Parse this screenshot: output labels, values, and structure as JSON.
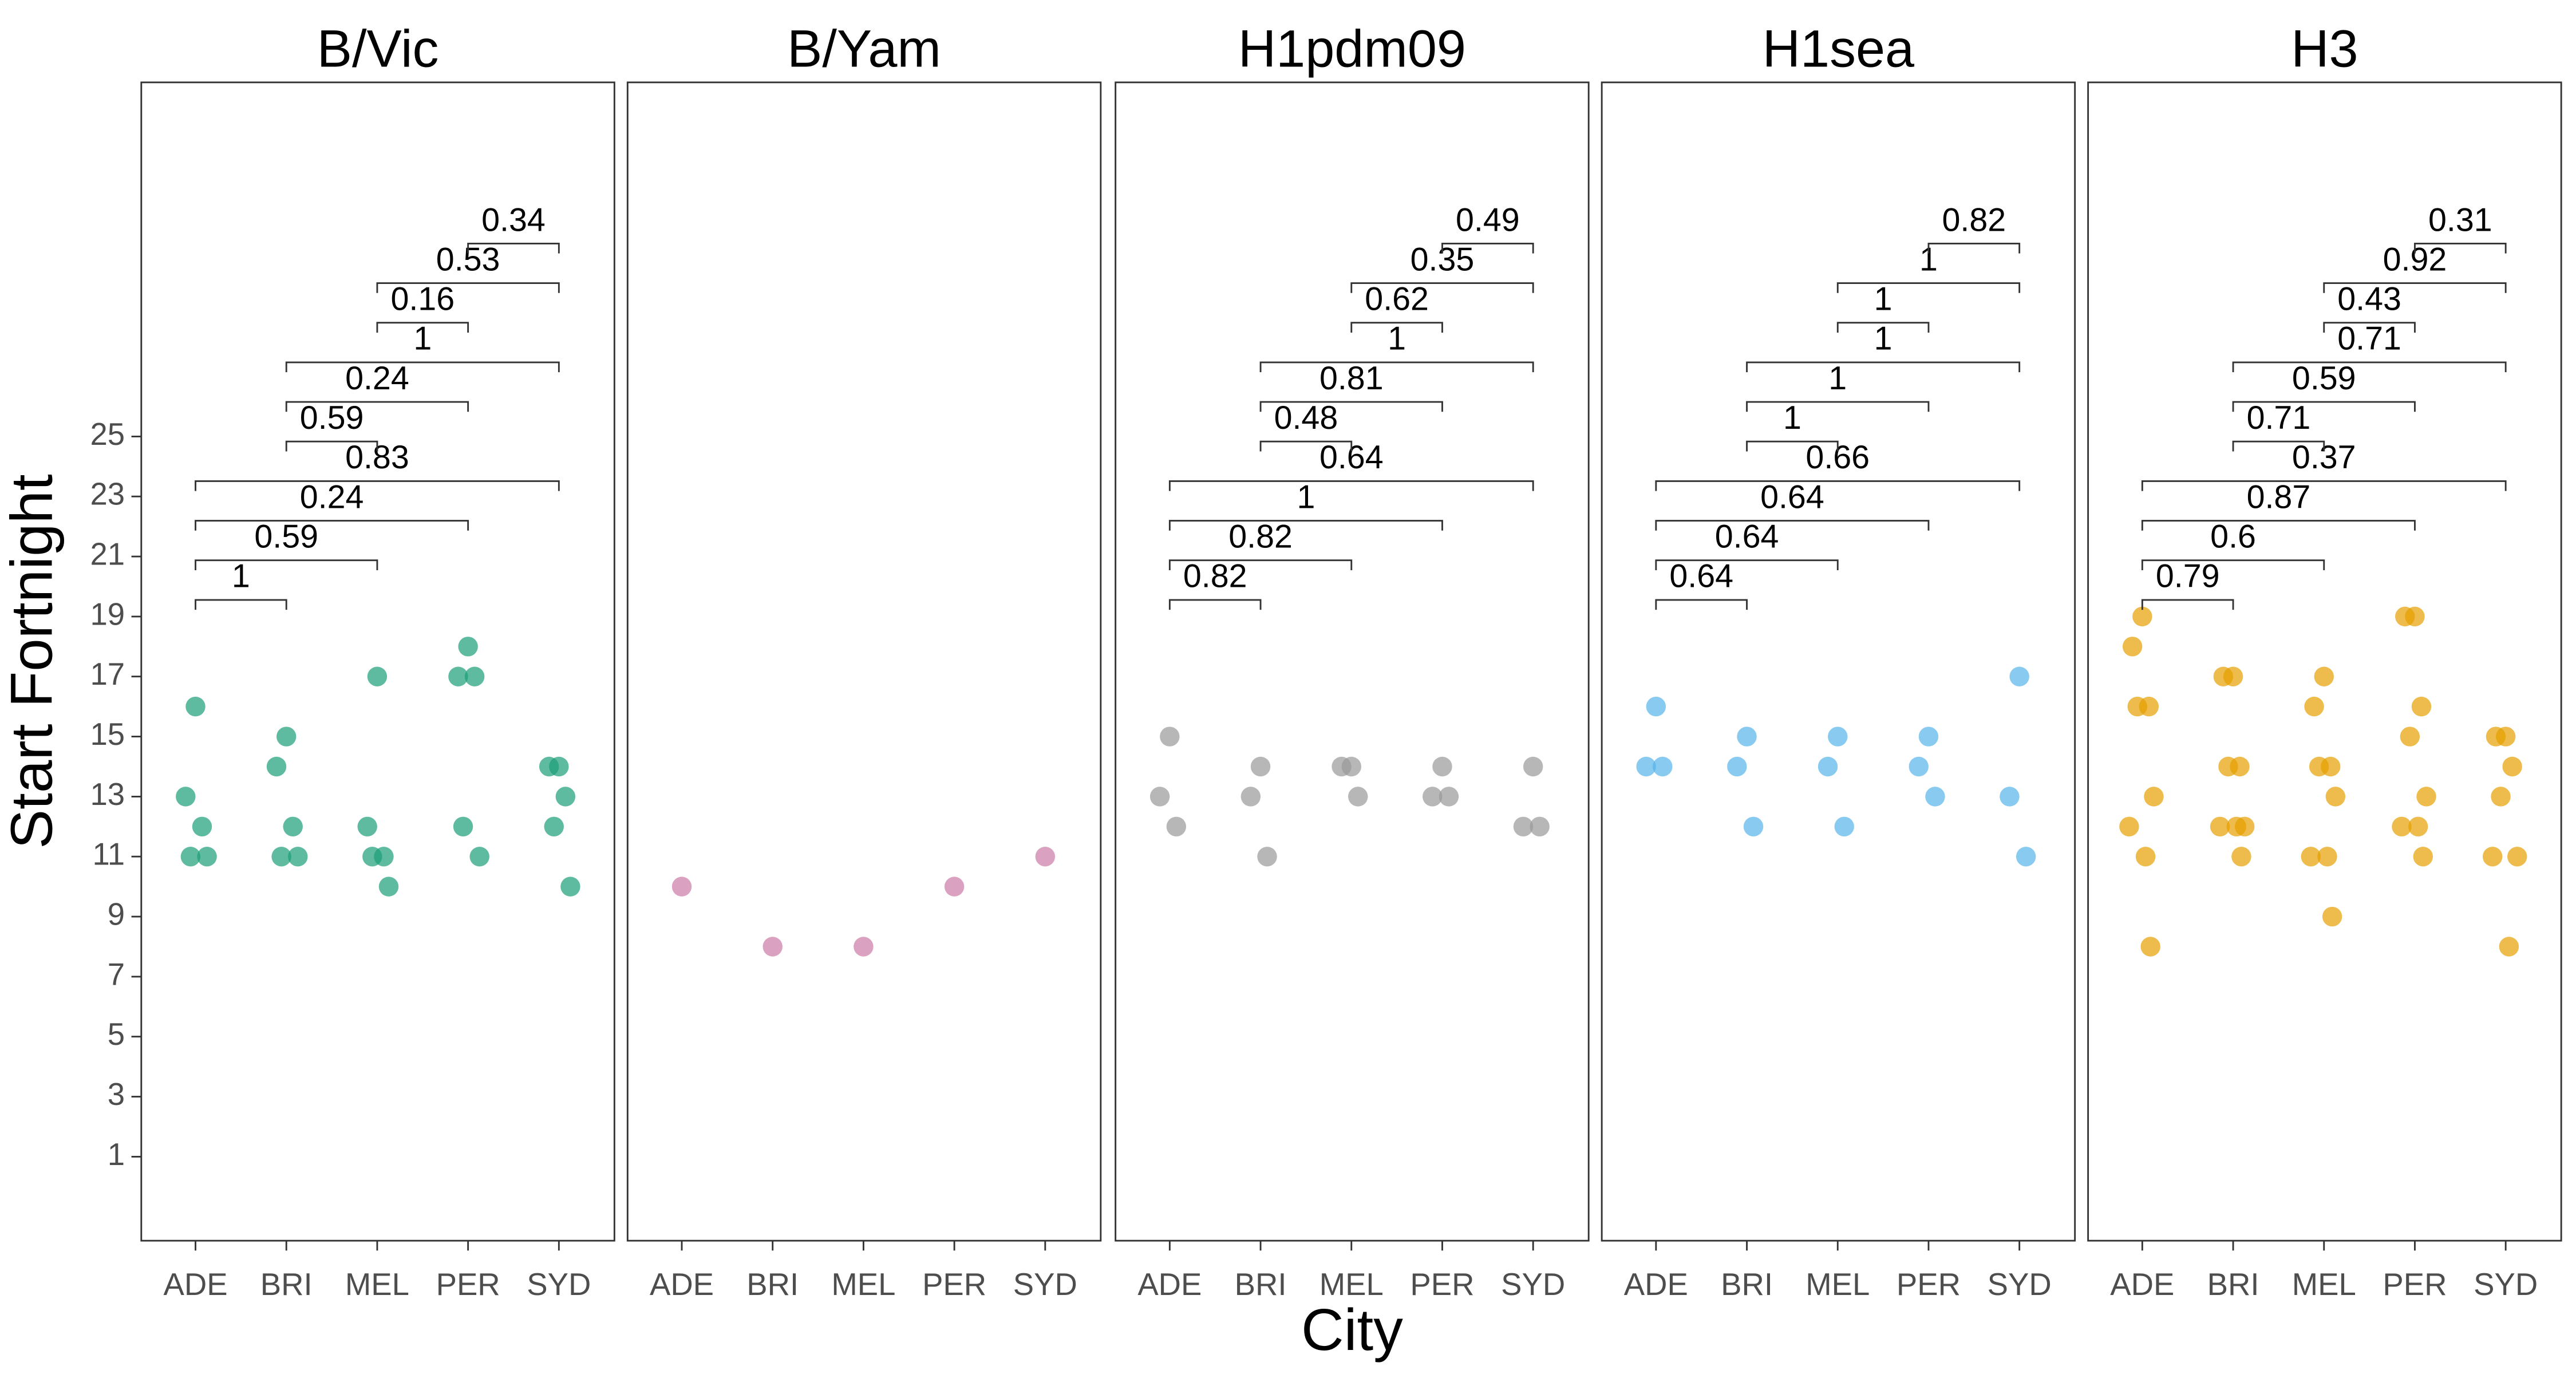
{
  "chart_data": [
    {
      "type": "scatter",
      "title": "B/Vic",
      "y_label": "Start Fortnight",
      "ylim": [
        -1.8,
        36.8
      ],
      "yticks": [
        1,
        3,
        5,
        7,
        9,
        11,
        13,
        15,
        17,
        19,
        21,
        23,
        25
      ],
      "categories": [
        "ADE",
        "BRI",
        "MEL",
        "PER",
        "SYD"
      ],
      "color": "#1b9e77",
      "x": [
        "ADE",
        "ADE",
        "ADE",
        "ADE",
        "ADE",
        "BRI",
        "BRI",
        "BRI",
        "BRI",
        "BRI",
        "MEL",
        "MEL",
        "MEL",
        "MEL",
        "MEL",
        "PER",
        "PER",
        "PER",
        "PER",
        "PER",
        "SYD",
        "SYD",
        "SYD",
        "SYD",
        "SYD"
      ],
      "values": [
        16,
        13,
        12,
        11,
        11,
        15,
        14,
        12,
        11,
        11,
        17,
        12,
        11,
        11,
        10,
        18,
        17,
        17,
        12,
        11,
        14,
        14,
        13,
        12,
        10
      ],
      "comparisons": [
        {
          "groups": [
            "ADE",
            "BRI"
          ],
          "p": 1
        },
        {
          "groups": [
            "ADE",
            "MEL"
          ],
          "p": 0.59
        },
        {
          "groups": [
            "ADE",
            "PER"
          ],
          "p": 0.24
        },
        {
          "groups": [
            "ADE",
            "SYD"
          ],
          "p": 0.83
        },
        {
          "groups": [
            "BRI",
            "MEL"
          ],
          "p": 0.59
        },
        {
          "groups": [
            "BRI",
            "PER"
          ],
          "p": 0.24
        },
        {
          "groups": [
            "BRI",
            "SYD"
          ],
          "p": 1
        },
        {
          "groups": [
            "MEL",
            "PER"
          ],
          "p": 0.16
        },
        {
          "groups": [
            "MEL",
            "SYD"
          ],
          "p": 0.53
        },
        {
          "groups": [
            "PER",
            "SYD"
          ],
          "p": 0.34
        }
      ]
    },
    {
      "type": "scatter",
      "title": "B/Yam",
      "categories": [
        "ADE",
        "BRI",
        "MEL",
        "PER",
        "SYD"
      ],
      "color": "#cc79a7",
      "x": [
        "ADE",
        "BRI",
        "MEL",
        "PER",
        "SYD"
      ],
      "values": [
        10,
        8,
        8,
        10,
        11
      ],
      "comparisons": []
    },
    {
      "type": "scatter",
      "title": "H1pdm09",
      "x_label": "City",
      "categories": [
        "ADE",
        "BRI",
        "MEL",
        "PER",
        "SYD"
      ],
      "color": "#999999",
      "x": [
        "ADE",
        "ADE",
        "ADE",
        "BRI",
        "BRI",
        "BRI",
        "MEL",
        "MEL",
        "MEL",
        "PER",
        "PER",
        "PER",
        "SYD",
        "SYD",
        "SYD"
      ],
      "values": [
        15,
        13,
        12,
        14,
        13,
        11,
        14,
        14,
        13,
        14,
        13,
        13,
        14,
        12,
        12
      ],
      "comparisons": [
        {
          "groups": [
            "ADE",
            "BRI"
          ],
          "p": 0.82
        },
        {
          "groups": [
            "ADE",
            "MEL"
          ],
          "p": 0.82
        },
        {
          "groups": [
            "ADE",
            "PER"
          ],
          "p": 1
        },
        {
          "groups": [
            "ADE",
            "SYD"
          ],
          "p": 0.64
        },
        {
          "groups": [
            "BRI",
            "MEL"
          ],
          "p": 0.48
        },
        {
          "groups": [
            "BRI",
            "PER"
          ],
          "p": 0.81
        },
        {
          "groups": [
            "BRI",
            "SYD"
          ],
          "p": 1
        },
        {
          "groups": [
            "MEL",
            "PER"
          ],
          "p": 0.62
        },
        {
          "groups": [
            "MEL",
            "SYD"
          ],
          "p": 0.35
        },
        {
          "groups": [
            "PER",
            "SYD"
          ],
          "p": 0.49
        }
      ]
    },
    {
      "type": "scatter",
      "title": "H1sea",
      "categories": [
        "ADE",
        "BRI",
        "MEL",
        "PER",
        "SYD"
      ],
      "color": "#56b4e9",
      "x": [
        "ADE",
        "ADE",
        "ADE",
        "BRI",
        "BRI",
        "BRI",
        "MEL",
        "MEL",
        "MEL",
        "PER",
        "PER",
        "PER",
        "SYD",
        "SYD",
        "SYD"
      ],
      "values": [
        16,
        14,
        14,
        15,
        14,
        12,
        15,
        14,
        12,
        15,
        14,
        13,
        17,
        13,
        11
      ],
      "comparisons": [
        {
          "groups": [
            "ADE",
            "BRI"
          ],
          "p": 0.64
        },
        {
          "groups": [
            "ADE",
            "MEL"
          ],
          "p": 0.64
        },
        {
          "groups": [
            "ADE",
            "PER"
          ],
          "p": 0.64
        },
        {
          "groups": [
            "ADE",
            "SYD"
          ],
          "p": 0.66
        },
        {
          "groups": [
            "BRI",
            "MEL"
          ],
          "p": 1
        },
        {
          "groups": [
            "BRI",
            "PER"
          ],
          "p": 1
        },
        {
          "groups": [
            "BRI",
            "SYD"
          ],
          "p": 1
        },
        {
          "groups": [
            "MEL",
            "PER"
          ],
          "p": 1
        },
        {
          "groups": [
            "MEL",
            "SYD"
          ],
          "p": 1
        },
        {
          "groups": [
            "PER",
            "SYD"
          ],
          "p": 0.82
        }
      ]
    },
    {
      "type": "scatter",
      "title": "H3",
      "categories": [
        "ADE",
        "BRI",
        "MEL",
        "PER",
        "SYD"
      ],
      "color": "#e69f00",
      "x": [
        "ADE",
        "ADE",
        "ADE",
        "ADE",
        "ADE",
        "ADE",
        "ADE",
        "ADE",
        "BRI",
        "BRI",
        "BRI",
        "BRI",
        "BRI",
        "BRI",
        "BRI",
        "BRI",
        "MEL",
        "MEL",
        "MEL",
        "MEL",
        "MEL",
        "MEL",
        "MEL",
        "MEL",
        "PER",
        "PER",
        "PER",
        "PER",
        "PER",
        "PER",
        "PER",
        "PER",
        "SYD",
        "SYD",
        "SYD",
        "SYD",
        "SYD",
        "SYD",
        "SYD"
      ],
      "values": [
        19,
        18,
        16,
        16,
        13,
        12,
        11,
        8,
        17,
        17,
        14,
        14,
        12,
        12,
        12,
        11,
        17,
        16,
        14,
        14,
        13,
        11,
        11,
        9,
        19,
        19,
        16,
        15,
        13,
        12,
        12,
        11,
        15,
        15,
        14,
        13,
        11,
        11,
        8
      ],
      "comparisons": [
        {
          "groups": [
            "ADE",
            "BRI"
          ],
          "p": 0.79
        },
        {
          "groups": [
            "ADE",
            "MEL"
          ],
          "p": 0.6
        },
        {
          "groups": [
            "ADE",
            "PER"
          ],
          "p": 0.87
        },
        {
          "groups": [
            "ADE",
            "SYD"
          ],
          "p": 0.37
        },
        {
          "groups": [
            "BRI",
            "MEL"
          ],
          "p": 0.71
        },
        {
          "groups": [
            "BRI",
            "PER"
          ],
          "p": 0.59
        },
        {
          "groups": [
            "BRI",
            "SYD"
          ],
          "p": 0.71
        },
        {
          "groups": [
            "MEL",
            "PER"
          ],
          "p": 0.43
        },
        {
          "groups": [
            "MEL",
            "SYD"
          ],
          "p": 0.92
        },
        {
          "groups": [
            "PER",
            "SYD"
          ],
          "p": 0.31
        }
      ]
    }
  ]
}
